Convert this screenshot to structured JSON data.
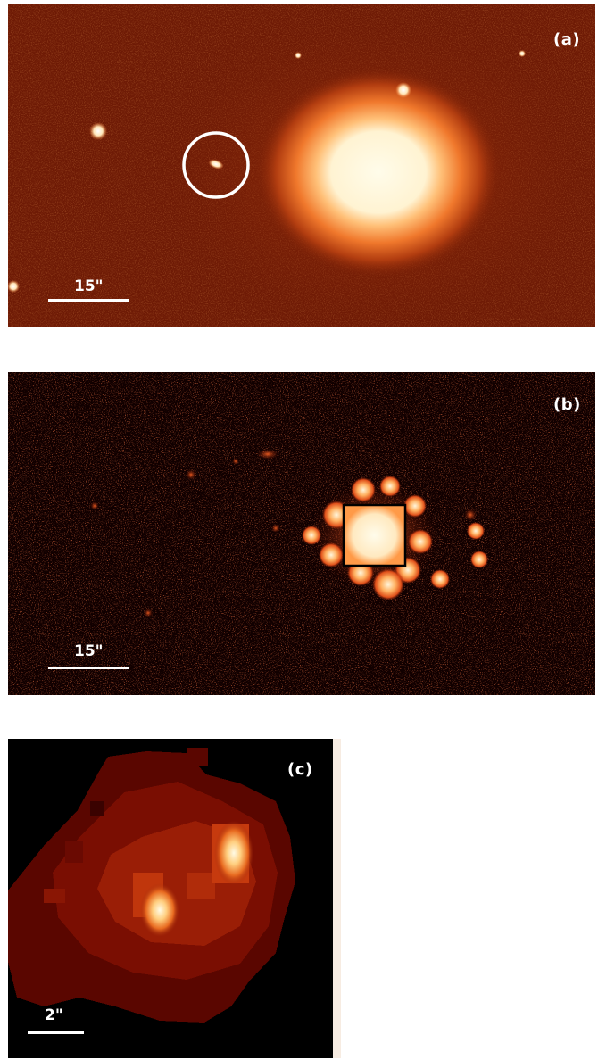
{
  "panels": [
    {
      "id": "a",
      "label": "(a)",
      "scale_label": "15\""
    },
    {
      "id": "b",
      "label": "(b)",
      "scale_label": "15\""
    },
    {
      "id": "c",
      "label": "(c)",
      "scale_label": "2\""
    }
  ],
  "colors": {
    "background_a": "#6e1a05",
    "background_b": "#110000",
    "background_c": "#000000",
    "glow_core": "#fffbe8",
    "glow_mid": "#ff9a40",
    "glow_outer": "#c0440f",
    "marker": "#ffffff",
    "box": "#000000"
  }
}
